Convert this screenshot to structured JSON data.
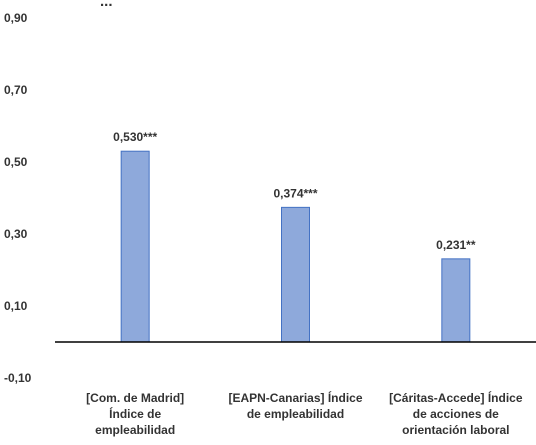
{
  "chart_data": {
    "type": "bar",
    "title_fragment": "...",
    "categories": [
      [
        "[Com. de Madrid]",
        "Índice de",
        "empleabilidad"
      ],
      [
        "[EAPN-Canarias] Índice",
        "de empleabilidad"
      ],
      [
        "[Cáritas-Accede] Índice",
        "de acciones de",
        "orientación laboral"
      ]
    ],
    "values": [
      0.53,
      0.374,
      0.231
    ],
    "data_labels": [
      "0,530***",
      "0,374***",
      "0,231**"
    ],
    "yticks": [
      "0,90",
      "0,70",
      "0,50",
      "0,30",
      "0,10",
      "-0,10"
    ],
    "ytick_values": [
      0.9,
      0.7,
      0.5,
      0.3,
      0.1,
      -0.1
    ],
    "ylim": [
      -0.1,
      0.9
    ],
    "bar_color": "#8EA9DB",
    "bar_stroke": "#4472C4",
    "grid": false
  }
}
